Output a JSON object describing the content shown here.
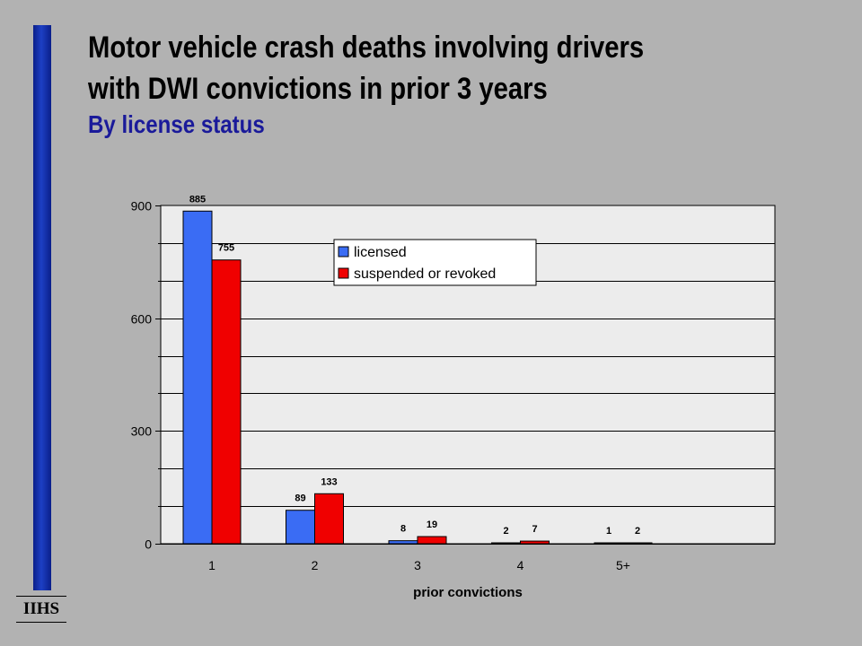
{
  "header": {
    "title_line1": "Motor vehicle crash deaths involving drivers",
    "title_line2": "with DWI convictions in prior 3 years",
    "subtitle": "By license status"
  },
  "logo": {
    "text": "IIHS"
  },
  "chart_data": {
    "type": "bar",
    "title": "Motor vehicle crash deaths involving drivers with DWI convictions in prior 3 years",
    "subtitle": "By license status",
    "categories": [
      "1",
      "2",
      "3",
      "4",
      "5+"
    ],
    "series": [
      {
        "name": "licensed",
        "values": [
          885,
          89,
          8,
          2,
          1
        ],
        "color": "#3a6cf4"
      },
      {
        "name": "suspended or revoked",
        "values": [
          755,
          133,
          19,
          7,
          2
        ],
        "color": "#f00000"
      }
    ],
    "xlabel": "prior convictions",
    "ylabel": "",
    "ylim": [
      0,
      900
    ],
    "yticks": [
      0,
      300,
      600,
      900
    ],
    "grid": true,
    "legend_position": "top-center",
    "plot_background": "#ececec"
  }
}
